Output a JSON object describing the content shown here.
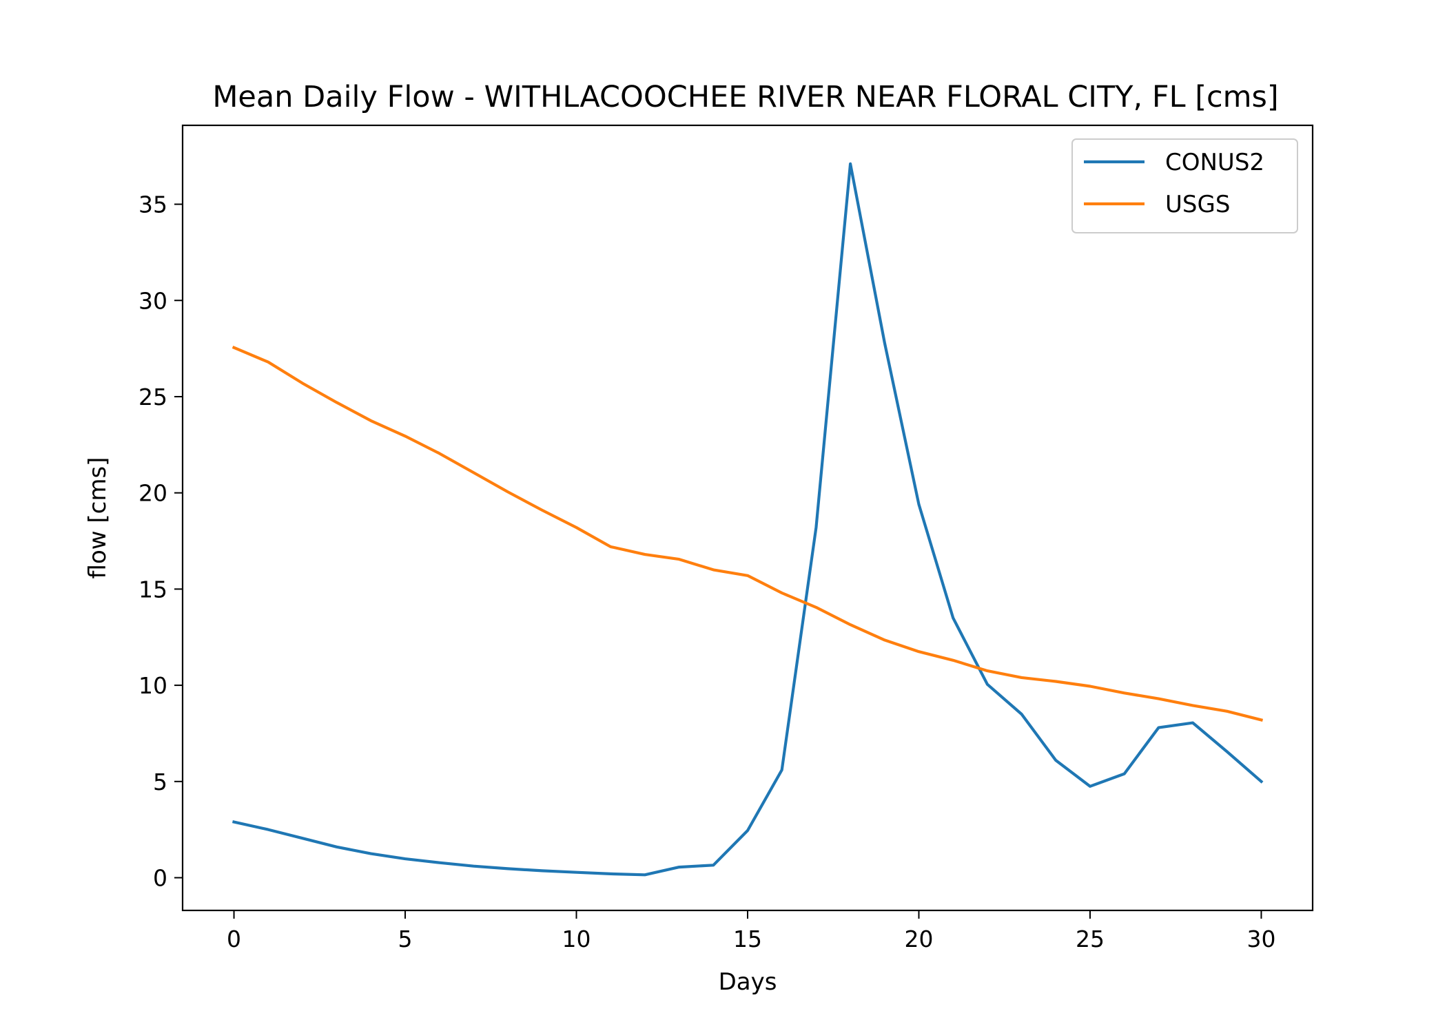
{
  "chart_data": {
    "type": "line",
    "title": "Mean Daily Flow - WITHLACOOCHEE RIVER NEAR FLORAL CITY, FL [cms]",
    "xlabel": "Days",
    "ylabel": "flow [cms]",
    "xlim": [
      -1.5,
      31.5
    ],
    "ylim": [
      -1.7,
      39.1
    ],
    "xticks": [
      0,
      5,
      10,
      15,
      20,
      25,
      30
    ],
    "yticks": [
      0,
      5,
      10,
      15,
      20,
      25,
      30,
      35
    ],
    "grid": false,
    "legend_position": "top-right",
    "x": [
      0,
      1,
      2,
      3,
      4,
      5,
      6,
      7,
      8,
      9,
      10,
      11,
      12,
      13,
      14,
      15,
      16,
      17,
      18,
      19,
      20,
      21,
      22,
      23,
      24,
      25,
      26,
      27,
      28,
      29,
      30
    ],
    "series": [
      {
        "name": "CONUS2",
        "color": "#1f77b4",
        "values": [
          2.9,
          2.5,
          2.05,
          1.6,
          1.25,
          0.98,
          0.78,
          0.6,
          0.47,
          0.36,
          0.28,
          0.2,
          0.15,
          0.55,
          0.65,
          2.45,
          5.6,
          18.2,
          37.1,
          27.8,
          19.4,
          13.5,
          10.05,
          8.5,
          6.1,
          4.75,
          5.4,
          7.8,
          8.05,
          6.55,
          5.0
        ]
      },
      {
        "name": "USGS",
        "color": "#ff7f0e",
        "values": [
          27.55,
          26.8,
          25.7,
          24.7,
          23.75,
          22.95,
          22.05,
          21.05,
          20.05,
          19.1,
          18.2,
          17.2,
          16.8,
          16.55,
          16.0,
          15.7,
          14.8,
          14.05,
          13.15,
          12.35,
          11.75,
          11.3,
          10.75,
          10.4,
          10.2,
          9.95,
          9.6,
          9.3,
          8.95,
          8.65,
          8.2
        ]
      }
    ]
  }
}
